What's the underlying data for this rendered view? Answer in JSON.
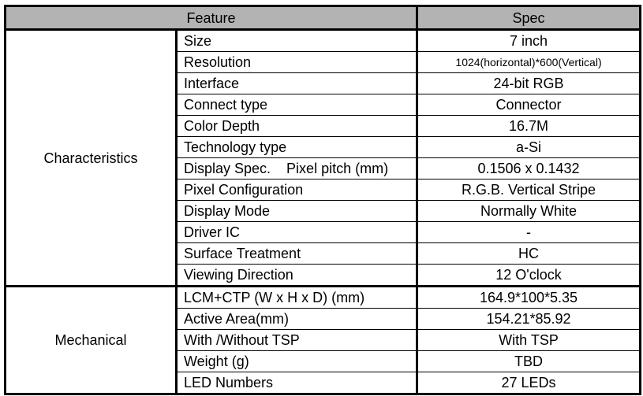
{
  "header": {
    "feature": "Feature",
    "spec": "Spec"
  },
  "groups": [
    {
      "name": "Characteristics",
      "rows": [
        {
          "feature": "Size",
          "spec": "7 inch"
        },
        {
          "feature": "Resolution",
          "spec": "1024(horizontal)*600(Vertical)"
        },
        {
          "feature": "Interface",
          "spec": "24-bit RGB"
        },
        {
          "feature": "Connect type",
          "spec": "Connector"
        },
        {
          "feature": "Color Depth",
          "spec": "16.7M"
        },
        {
          "feature": "Technology type",
          "spec": "a-Si"
        },
        {
          "feature": "Display Spec.    Pixel pitch (mm)",
          "spec": "0.1506 x 0.1432"
        },
        {
          "feature": "Pixel Configuration",
          "spec": "R.G.B. Vertical Stripe"
        },
        {
          "feature": "Display Mode",
          "spec": "Normally White"
        },
        {
          "feature": "Driver IC",
          "spec": "-"
        },
        {
          "feature": "Surface Treatment",
          "spec": "HC"
        },
        {
          "feature": "Viewing Direction",
          "spec": "12 O'clock"
        }
      ]
    },
    {
      "name": "Mechanical",
      "rows": [
        {
          "feature": "LCM+CTP (W x H x D) (mm)",
          "spec": "164.9*100*5.35"
        },
        {
          "feature": "Active Area(mm)",
          "spec": "154.21*85.92"
        },
        {
          "feature": "With /Without TSP",
          "spec": "With TSP"
        },
        {
          "feature": "Weight (g)",
          "spec": "TBD"
        },
        {
          "feature": "LED Numbers",
          "spec": "27 LEDs"
        }
      ]
    }
  ]
}
